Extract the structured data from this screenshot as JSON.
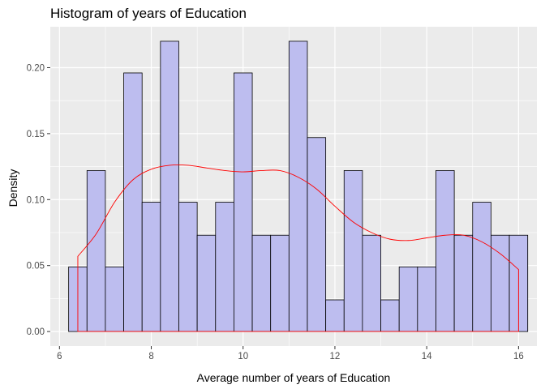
{
  "chart_data": {
    "type": "bar",
    "title": "Histogram of years of Education",
    "xlabel": "Average number of years of Education",
    "ylabel": "Density",
    "xlim": [
      5.8,
      16.4
    ],
    "ylim": [
      -0.011,
      0.231
    ],
    "x_ticks": [
      6,
      8,
      10,
      12,
      14,
      16
    ],
    "x_tick_labels": [
      "6",
      "8",
      "10",
      "12",
      "14",
      "16"
    ],
    "y_ticks": [
      0,
      0.05,
      0.1,
      0.15,
      0.2
    ],
    "y_tick_labels": [
      "0.00",
      "0.05",
      "0.10",
      "0.15",
      "0.20"
    ],
    "grid": true,
    "bin_edges": [
      6.2,
      6.6,
      7.0,
      7.4,
      7.8,
      8.2,
      8.6,
      9.0,
      9.4,
      9.8,
      10.2,
      10.6,
      11.0,
      11.4,
      11.8,
      12.2,
      12.6,
      13.0,
      13.4,
      13.8,
      14.2,
      14.6,
      15.0,
      15.4,
      15.8,
      16.2
    ],
    "values": [
      0.049,
      0.122,
      0.049,
      0.196,
      0.098,
      0.22,
      0.098,
      0.073,
      0.098,
      0.196,
      0.073,
      0.073,
      0.22,
      0.147,
      0.024,
      0.122,
      0.073,
      0.024,
      0.049,
      0.049,
      0.122,
      0.073,
      0.098,
      0.073,
      0.073
    ],
    "density_curve": {
      "x": [
        6.4,
        6.8,
        7.2,
        7.6,
        8.0,
        8.4,
        8.8,
        9.2,
        9.6,
        10.0,
        10.4,
        10.8,
        11.2,
        11.6,
        12.0,
        12.4,
        12.8,
        13.2,
        13.6,
        14.0,
        14.4,
        14.8,
        15.2,
        15.6,
        16.0
      ],
      "y": [
        0.057,
        0.074,
        0.098,
        0.115,
        0.123,
        0.126,
        0.126,
        0.124,
        0.122,
        0.121,
        0.122,
        0.122,
        0.117,
        0.108,
        0.095,
        0.083,
        0.075,
        0.07,
        0.069,
        0.071,
        0.073,
        0.073,
        0.068,
        0.059,
        0.047
      ]
    },
    "colors": {
      "panel_background": "#ebebeb",
      "grid_major": "#ffffff",
      "bar_fill": "#bdbdef",
      "bar_stroke": "#000000",
      "density_line": "#ff0000",
      "tick_label": "#4d4d4d",
      "tick_mark": "#333333"
    }
  }
}
